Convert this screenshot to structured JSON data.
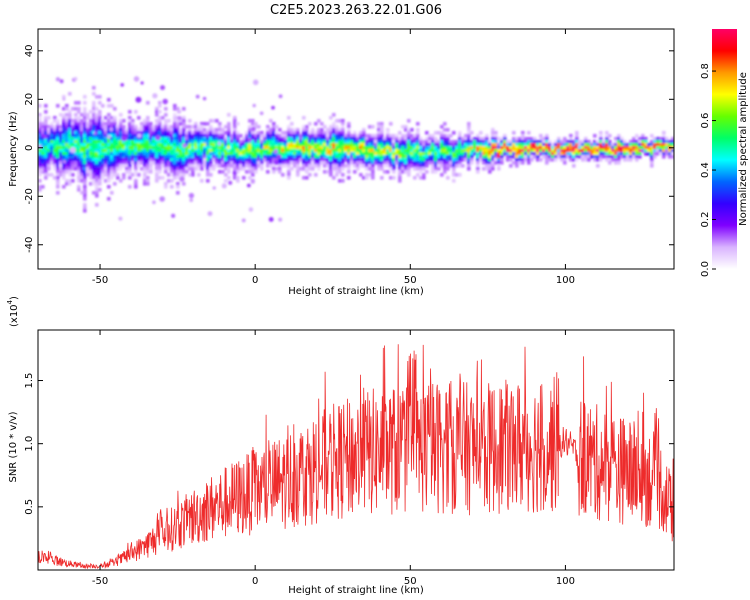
{
  "title": "C2E5.2023.263.22.01.G06",
  "chart_data": [
    {
      "type": "heatmap",
      "xlabel": "Height of straight line (km)",
      "ylabel": "Frequency (Hz)",
      "xlim": [
        -70,
        135
      ],
      "ylim": [
        -50,
        49
      ],
      "xticks": [
        -50,
        0,
        50,
        100
      ],
      "yticks": [
        -40,
        -20,
        0,
        20,
        40
      ],
      "colorbar": {
        "label": "Normalized spectral amplitude",
        "range": [
          0,
          0.97
        ],
        "ticks": [
          "0.0",
          "0.2",
          "0.4",
          "0.6",
          "0.8"
        ],
        "colormap": [
          "#ffffff",
          "#d9b3ff",
          "#7f00ff",
          "#3300ff",
          "#0066ff",
          "#00ffff",
          "#00ff66",
          "#66ff00",
          "#ffff00",
          "#ff9900",
          "#ff0000",
          "#ff0066"
        ]
      },
      "ridge": {
        "x": [
          -70,
          -60,
          -52,
          -45,
          -35,
          -25,
          -15,
          -5,
          5,
          15,
          25,
          35,
          45,
          55,
          62,
          70,
          80,
          90,
          100,
          110,
          120,
          130,
          135
        ],
        "frequency": [
          0,
          1,
          0,
          1,
          2,
          0,
          1,
          -1,
          0,
          0,
          1,
          0,
          -1,
          -2,
          -1,
          0,
          0,
          0,
          0,
          0,
          0,
          1,
          1
        ],
        "amplitude": [
          0.5,
          0.55,
          0.55,
          0.55,
          0.55,
          0.55,
          0.6,
          0.6,
          0.65,
          0.7,
          0.7,
          0.7,
          0.65,
          0.6,
          0.55,
          0.7,
          0.95,
          0.95,
          0.95,
          0.95,
          0.95,
          0.85,
          0.8
        ],
        "spread_hz": [
          6,
          6,
          8,
          5,
          5,
          6,
          4,
          4,
          4,
          4,
          4,
          3.5,
          3.5,
          3.5,
          3.5,
          3,
          2.5,
          2,
          2,
          2,
          2,
          2,
          2
        ]
      }
    },
    {
      "type": "line",
      "xlabel": "Height of straight line (km)",
      "ylabel": "SNR (10 * v/v)",
      "yscale_label": "(x10",
      "yscale_exp": "4",
      "yscale_close": ")",
      "xlim": [
        -70,
        135
      ],
      "ylim": [
        0,
        19000
      ],
      "xticks": [
        -50,
        0,
        50,
        100
      ],
      "yticks": [
        5000,
        10000,
        15000
      ],
      "yticklabels": [
        "0.5",
        "1.0",
        "1.5"
      ],
      "series": [
        {
          "color": "#ee2b2b",
          "x": [
            -70,
            -65,
            -60,
            -55,
            -50,
            -45,
            -40,
            -35,
            -30,
            -25,
            -20,
            -15,
            -10,
            -5,
            0,
            5,
            10,
            15,
            20,
            25,
            30,
            35,
            40,
            45,
            50,
            55,
            60,
            65,
            70,
            75,
            80,
            85,
            90,
            95,
            100,
            105,
            110,
            115,
            120,
            125,
            130,
            135
          ],
          "y": [
            1000,
            800,
            500,
            300,
            300,
            600,
            1300,
            2000,
            2800,
            3500,
            4200,
            4800,
            5300,
            5800,
            6200,
            6600,
            7100,
            7600,
            8100,
            8500,
            8800,
            9200,
            9400,
            9500,
            9600,
            9700,
            9800,
            9700,
            9600,
            9600,
            9700,
            9800,
            9800,
            9800,
            10200,
            9000,
            8500,
            8200,
            7800,
            7500,
            7000,
            4500
          ]
        }
      ]
    }
  ]
}
